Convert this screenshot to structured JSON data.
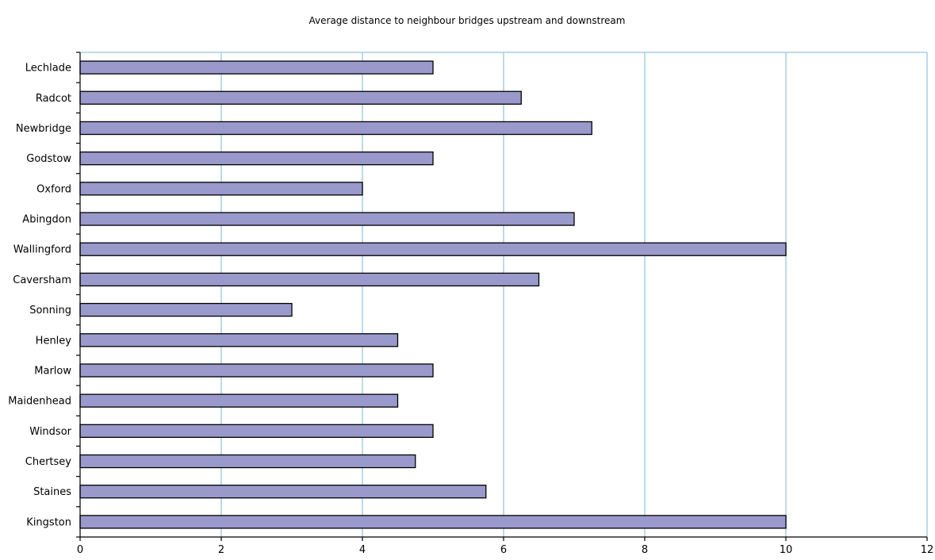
{
  "chart_data": {
    "type": "bar",
    "orientation": "horizontal",
    "title": "Average distance to neighbour bridges upstream and downstream",
    "xlabel": "",
    "ylabel": "",
    "categories": [
      "Lechlade",
      "Radcot",
      "Newbridge",
      "Godstow",
      "Oxford",
      "Abingdon",
      "Wallingford",
      "Caversham",
      "Sonning",
      "Henley",
      "Marlow",
      "Maidenhead",
      "Windsor",
      "Chertsey",
      "Staines",
      "Kingston"
    ],
    "values": [
      5,
      6.25,
      7.25,
      5,
      4,
      7,
      10,
      6.5,
      3,
      4.5,
      5,
      4.5,
      5,
      4.75,
      5.75,
      10
    ],
    "xlim": [
      0,
      12
    ],
    "xticks": [
      "0",
      "2",
      "4",
      "6",
      "8",
      "10",
      "12"
    ],
    "grid": true,
    "legend": "none",
    "colors": {
      "bar": "#9999cc",
      "grid": "#a9cde0",
      "axis": "#000000"
    }
  }
}
